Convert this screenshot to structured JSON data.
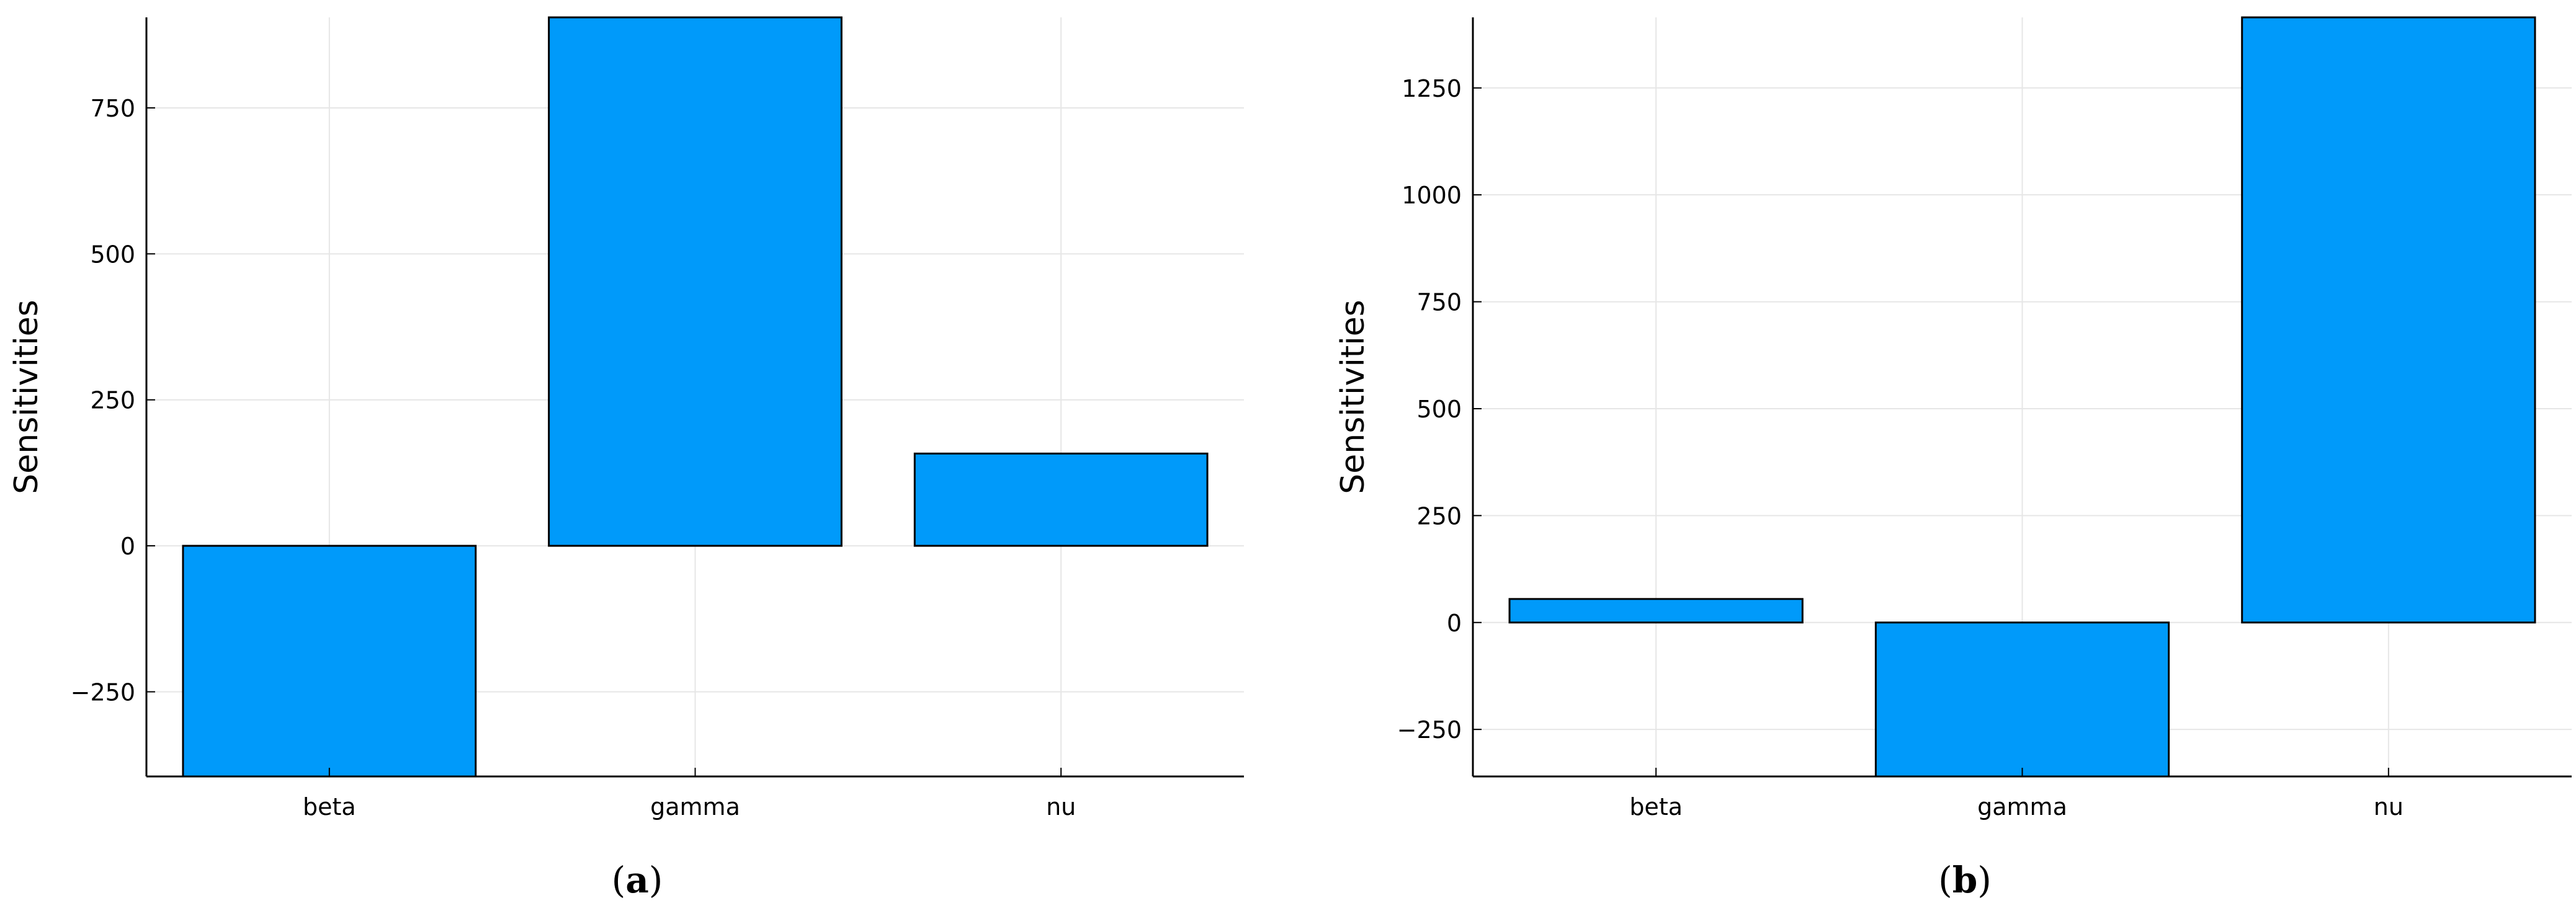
{
  "figure": {
    "panels": [
      {
        "label": "a"
      },
      {
        "label": "b"
      }
    ]
  },
  "chart_data": [
    {
      "type": "bar",
      "categories": [
        "beta",
        "gamma",
        "nu"
      ],
      "values": [
        -395,
        905,
        158
      ],
      "ylabel": "Sensitivities",
      "xlabel": "",
      "ylim": [
        -395,
        905
      ],
      "yticks": [
        -250,
        0,
        250,
        500,
        750
      ],
      "ytick_labels": [
        "−250",
        "0",
        "250",
        "500",
        "750"
      ],
      "grid": true,
      "legend": "none",
      "bar_color": "#009AFA",
      "edge_color": "#000000"
    },
    {
      "type": "bar",
      "categories": [
        "beta",
        "gamma",
        "nu"
      ],
      "values": [
        55,
        -360,
        1415
      ],
      "ylabel": "Sensitivities",
      "xlabel": "",
      "ylim": [
        -360,
        1415
      ],
      "yticks": [
        -250,
        0,
        250,
        500,
        750,
        1000,
        1250
      ],
      "ytick_labels": [
        "−250",
        "0",
        "250",
        "500",
        "750",
        "1000",
        "1250"
      ],
      "grid": true,
      "legend": "none",
      "bar_color": "#009AFA",
      "edge_color": "#000000"
    }
  ]
}
